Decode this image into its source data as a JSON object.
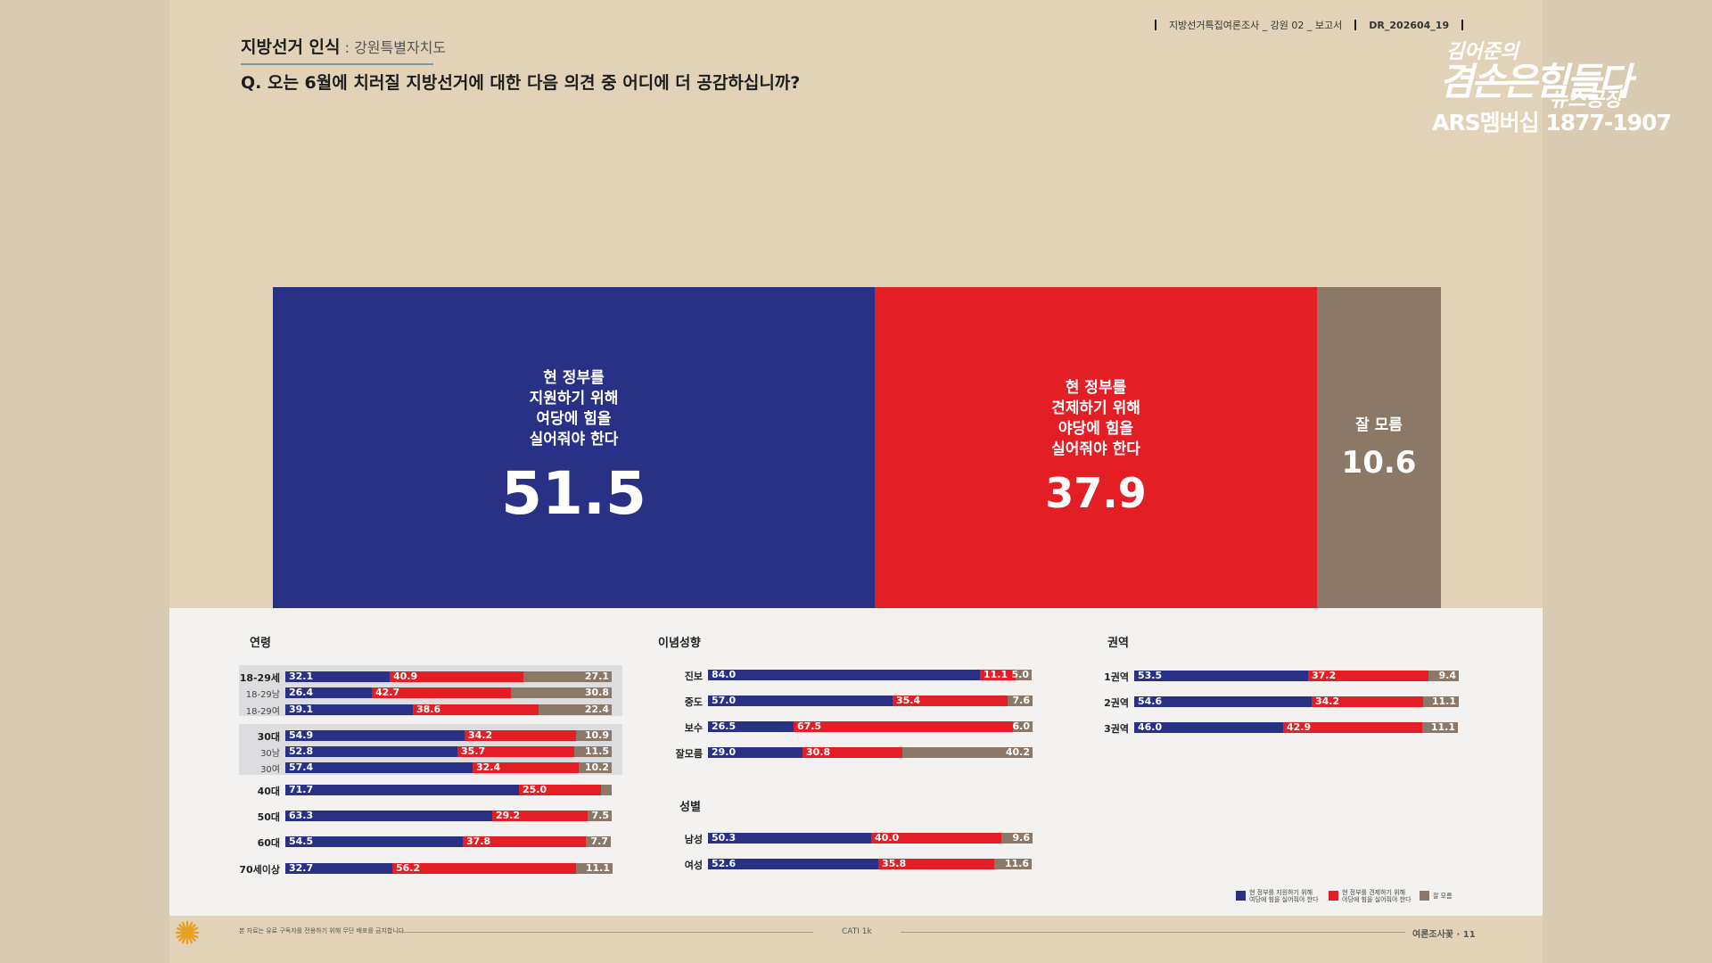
{
  "header": {
    "title": "지방선거 인식",
    "subtitle": ": 강원특별자치도",
    "question": "Q. 오는 6월에 치러질 지방선거에 대한 다음 의견 중 어디에 더 공감하십니까?",
    "meta_survey": "지방선거특집여론조사 _ 강원 02 _ 보고서",
    "meta_code": "DR_202604_19"
  },
  "logo": {
    "line1": "김어준의",
    "line2": "겸손은힘들다",
    "line3": "뉴스공장",
    "membership": "ARS멤버십 1877-1907"
  },
  "colors": {
    "blue": "#283185",
    "red": "#e31e24",
    "gray": "#8b7866",
    "background": "#e2d3b8",
    "panel": "#f3f2f0"
  },
  "main_chart": {
    "type": "bar",
    "stacked": true,
    "categories": [
      "현 정부를 지원하기 위해 여당에 힘을 실어줘야 한다",
      "현 정부를 견제하기 위해 야당에 힘을 실어줘야 한다",
      "잘 모름"
    ],
    "labels": [
      "현 정부를\n지원하기 위해\n여당에 힘을\n실어줘야 한다",
      "현 정부를\n견제하기 위해\n야당에 힘을\n실어줘야 한다",
      "잘 모름"
    ],
    "values": [
      "51.5",
      "37.9",
      "10.6"
    ]
  },
  "sections": [
    {
      "title": "연령",
      "rows": [
        {
          "label": "18-29세",
          "values": [
            "32.1",
            "40.9",
            "27.1"
          ],
          "sub": false
        },
        {
          "label": "18-29남",
          "values": [
            "26.4",
            "42.7",
            "30.8"
          ],
          "sub": true
        },
        {
          "label": "18-29여",
          "values": [
            "39.1",
            "38.6",
            "22.4"
          ],
          "sub": true
        },
        {
          "label": "30대",
          "values": [
            "54.9",
            "34.2",
            "10.9"
          ],
          "sub": false
        },
        {
          "label": "30남",
          "values": [
            "52.8",
            "35.7",
            "11.5"
          ],
          "sub": true
        },
        {
          "label": "30여",
          "values": [
            "57.4",
            "32.4",
            "10.2"
          ],
          "sub": true
        },
        {
          "label": "40대",
          "values": [
            "71.7",
            "25.0",
            ""
          ],
          "sub": false
        },
        {
          "label": "50대",
          "values": [
            "63.3",
            "29.2",
            "7.5"
          ],
          "sub": false
        },
        {
          "label": "60대",
          "values": [
            "54.5",
            "37.8",
            "7.7"
          ],
          "sub": false
        },
        {
          "label": "70세이상",
          "values": [
            "32.7",
            "56.2",
            "11.1"
          ],
          "sub": false
        }
      ]
    },
    {
      "title": "이념성향",
      "rows": [
        {
          "label": "진보",
          "values": [
            "84.0",
            "11.1",
            "5.0"
          ]
        },
        {
          "label": "중도",
          "values": [
            "57.0",
            "35.4",
            "7.6"
          ]
        },
        {
          "label": "보수",
          "values": [
            "26.5",
            "67.5",
            "6.0"
          ]
        },
        {
          "label": "잘모름",
          "values": [
            "29.0",
            "30.8",
            "40.2"
          ]
        }
      ]
    },
    {
      "title": "성별",
      "rows": [
        {
          "label": "남성",
          "values": [
            "50.3",
            "40.0",
            "9.6"
          ]
        },
        {
          "label": "여성",
          "values": [
            "52.6",
            "35.8",
            "11.6"
          ]
        }
      ]
    },
    {
      "title": "권역",
      "rows": [
        {
          "label": "1권역",
          "values": [
            "53.5",
            "37.2",
            "9.4"
          ]
        },
        {
          "label": "2권역",
          "values": [
            "54.6",
            "34.2",
            "11.1"
          ]
        },
        {
          "label": "3권역",
          "values": [
            "46.0",
            "42.9",
            "11.1"
          ]
        }
      ]
    }
  ],
  "legend": [
    {
      "label": "현 정부를 지원하기 위해\n여당에 힘을 실어줘야 한다",
      "color": "#283185"
    },
    {
      "label": "현 정부를 견제하기 위해\n야당에 힘을 실어줘야 한다",
      "color": "#e31e24"
    },
    {
      "label": "잘 모름",
      "color": "#8b7866"
    }
  ],
  "footer": {
    "disclaimer": "본 자료는 유료 구독자를 전용하기 위해 무단 배포를 금지합니다",
    "method": "CATI 1k",
    "brand": "여론조사꽃",
    "page": "11"
  }
}
